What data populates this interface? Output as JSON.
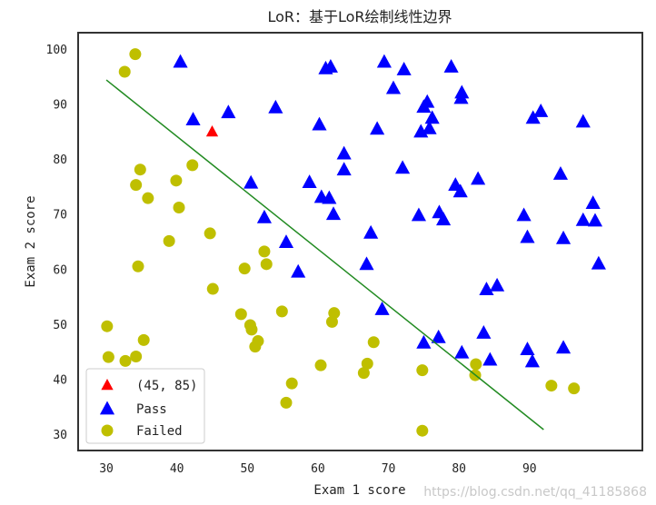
{
  "chart_data": {
    "type": "scatter",
    "title": "LoR：基于LoR绘制线性边界",
    "xlabel": "Exam 1 score",
    "ylabel": "Exam 2 score",
    "xlim": [
      26,
      106
    ],
    "ylim": [
      27,
      103
    ],
    "xticks": [
      30,
      40,
      50,
      60,
      70,
      80,
      90
    ],
    "yticks": [
      30,
      40,
      50,
      60,
      70,
      80,
      90,
      100
    ],
    "grid": false,
    "legend_position": "lower-left",
    "series": [
      {
        "name": "(45, 85)",
        "marker": "triangle",
        "color": "#ff0000",
        "points": [
          [
            45,
            85
          ]
        ]
      },
      {
        "name": "Pass",
        "marker": "triangle",
        "color": "#0000ff",
        "points": [
          [
            40.5,
            97.7
          ],
          [
            61.1,
            96.5
          ],
          [
            61.8,
            96.8
          ],
          [
            69.4,
            97.7
          ],
          [
            72.2,
            96.3
          ],
          [
            78.9,
            96.8
          ],
          [
            80.4,
            92.1
          ],
          [
            80.3,
            91.1
          ],
          [
            70.7,
            92.9
          ],
          [
            75.0,
            89.5
          ],
          [
            75.5,
            90.4
          ],
          [
            76.2,
            87.5
          ],
          [
            74.6,
            85.0
          ],
          [
            75.8,
            85.6
          ],
          [
            68.4,
            85.5
          ],
          [
            60.2,
            86.3
          ],
          [
            54.0,
            89.4
          ],
          [
            47.3,
            88.5
          ],
          [
            42.3,
            87.2
          ],
          [
            63.7,
            81.0
          ],
          [
            63.7,
            78.1
          ],
          [
            72.0,
            78.4
          ],
          [
            58.8,
            75.8
          ],
          [
            60.5,
            73.1
          ],
          [
            61.6,
            72.9
          ],
          [
            62.2,
            70.0
          ],
          [
            52.4,
            69.4
          ],
          [
            50.5,
            75.7
          ],
          [
            79.5,
            75.3
          ],
          [
            80.2,
            74.1
          ],
          [
            82.7,
            76.4
          ],
          [
            77.2,
            70.3
          ],
          [
            77.8,
            69.0
          ],
          [
            74.3,
            69.8
          ],
          [
            67.5,
            66.6
          ],
          [
            66.9,
            60.9
          ],
          [
            55.5,
            64.9
          ],
          [
            57.2,
            59.5
          ],
          [
            69.1,
            52.7
          ],
          [
            83.9,
            56.3
          ],
          [
            85.4,
            57.0
          ],
          [
            83.5,
            48.4
          ],
          [
            77.1,
            47.6
          ],
          [
            75.0,
            46.6
          ],
          [
            80.4,
            44.8
          ],
          [
            84.4,
            43.5
          ],
          [
            89.7,
            45.4
          ],
          [
            90.4,
            43.2
          ],
          [
            94.8,
            45.7
          ],
          [
            89.2,
            69.8
          ],
          [
            89.7,
            65.8
          ],
          [
            94.4,
            77.3
          ],
          [
            94.8,
            65.6
          ],
          [
            90.5,
            87.5
          ],
          [
            91.6,
            88.7
          ],
          [
            97.6,
            86.8
          ],
          [
            97.6,
            68.9
          ],
          [
            99.3,
            68.8
          ],
          [
            99.0,
            72.0
          ],
          [
            99.8,
            61.0
          ]
        ]
      },
      {
        "name": "Failed",
        "marker": "circle",
        "color": "#bfbf00",
        "points": [
          [
            34.1,
            99.1
          ],
          [
            32.6,
            95.9
          ],
          [
            42.2,
            78.9
          ],
          [
            34.8,
            78.1
          ],
          [
            34.2,
            75.3
          ],
          [
            39.9,
            76.1
          ],
          [
            35.9,
            72.9
          ],
          [
            40.3,
            71.2
          ],
          [
            38.9,
            65.1
          ],
          [
            44.7,
            66.5
          ],
          [
            34.5,
            60.5
          ],
          [
            49.6,
            60.1
          ],
          [
            52.4,
            63.2
          ],
          [
            52.7,
            60.9
          ],
          [
            45.1,
            56.4
          ],
          [
            49.1,
            51.8
          ],
          [
            50.4,
            49.8
          ],
          [
            50.6,
            49.0
          ],
          [
            51.5,
            46.9
          ],
          [
            51.1,
            45.9
          ],
          [
            54.9,
            52.3
          ],
          [
            62.3,
            52.0
          ],
          [
            62.0,
            50.4
          ],
          [
            60.4,
            42.5
          ],
          [
            56.3,
            39.2
          ],
          [
            55.5,
            35.7
          ],
          [
            30.1,
            49.6
          ],
          [
            30.3,
            44.0
          ],
          [
            32.7,
            43.3
          ],
          [
            34.2,
            44.1
          ],
          [
            35.3,
            47.1
          ],
          [
            67.0,
            42.8
          ],
          [
            66.5,
            41.1
          ],
          [
            67.9,
            46.7
          ],
          [
            74.8,
            41.6
          ],
          [
            82.4,
            42.7
          ],
          [
            82.3,
            40.7
          ],
          [
            93.1,
            38.8
          ],
          [
            96.3,
            38.3
          ],
          [
            74.8,
            30.6
          ]
        ]
      }
    ],
    "boundary": {
      "color": "#228b22",
      "points": [
        [
          30,
          94.4
        ],
        [
          92,
          30.8
        ]
      ]
    }
  },
  "watermark": "https://blog.csdn.net/qq_41185868"
}
